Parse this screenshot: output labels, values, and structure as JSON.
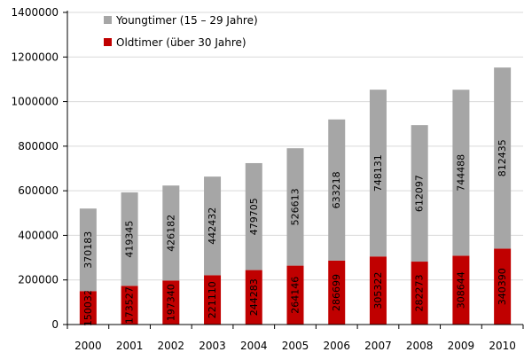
{
  "chart_data": {
    "type": "bar",
    "stacked": true,
    "title": "",
    "xlabel": "",
    "ylabel": "",
    "ylim": [
      0,
      1400000
    ],
    "yticks": [
      0,
      200000,
      400000,
      600000,
      800000,
      1000000,
      1200000,
      1400000
    ],
    "grid": true,
    "legend_position": "top-left",
    "categories": [
      "2000",
      "2001",
      "2002",
      "2003",
      "2004",
      "2005",
      "2006",
      "2007",
      "2008",
      "2009",
      "2010"
    ],
    "series": [
      {
        "name": "Oldtimer (über 30 Jahre)",
        "color": "#c00000",
        "values": [
          150032,
          173527,
          197340,
          221110,
          244283,
          264146,
          286699,
          305322,
          282273,
          308644,
          340390
        ]
      },
      {
        "name": "Youngtimer (15 – 29 Jahre)",
        "color": "#a6a6a6",
        "values": [
          370183,
          419345,
          426182,
          442432,
          479705,
          526613,
          633218,
          748131,
          612097,
          744488,
          812435
        ]
      }
    ]
  }
}
